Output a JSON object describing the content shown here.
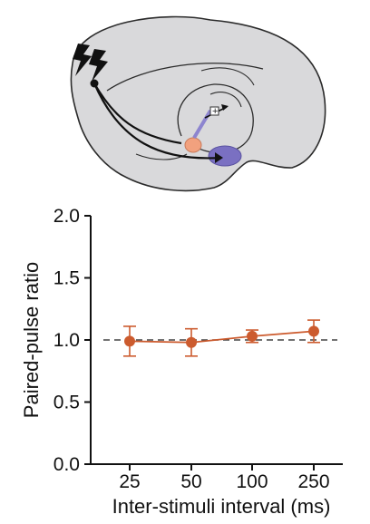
{
  "diagram": {
    "stimulus_icon": "lightning-bolt-icon",
    "plus_symbol": "+",
    "colors": {
      "brain_fill": "#d9d9db",
      "brain_outline": "#2b2b2b",
      "pathway": "#111111",
      "recording_site": "#f2a17e",
      "target_region": "#7a70c2"
    }
  },
  "chart_data": {
    "type": "line",
    "title": "",
    "xlabel": "Inter-stimuli interval (ms)",
    "ylabel": "Paired-pulse ratio",
    "categories": [
      "25",
      "50",
      "100",
      "250"
    ],
    "ylim": [
      0.0,
      2.0
    ],
    "yticks": [
      "0.0",
      "0.5",
      "1.0",
      "1.5",
      "2.0"
    ],
    "reference_line": {
      "y": 1.0,
      "style": "dashed",
      "color": "#444444"
    },
    "grid": false,
    "series": [
      {
        "values": [
          0.99,
          0.98,
          1.03,
          1.07
        ],
        "error": [
          0.12,
          0.11,
          0.05,
          0.09
        ],
        "color": "#cc5b2e"
      }
    ]
  }
}
